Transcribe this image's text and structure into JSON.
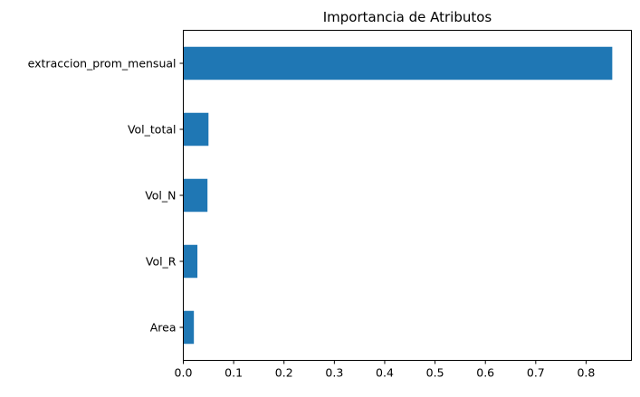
{
  "chart_data": {
    "type": "bar",
    "orientation": "horizontal",
    "title": "Importancia de Atributos",
    "xlabel": "",
    "ylabel": "",
    "categories": [
      "extraccion_prom_mensual",
      "Vol_total",
      "Vol_N",
      "Vol_R",
      "Area"
    ],
    "values": [
      0.852,
      0.05,
      0.048,
      0.028,
      0.021
    ],
    "xlim": [
      0,
      0.89
    ],
    "xticks": [
      "0.0",
      "0.1",
      "0.2",
      "0.3",
      "0.4",
      "0.5",
      "0.6",
      "0.7",
      "0.8"
    ],
    "grid": false,
    "legend": "none",
    "bar_color": "#1f77b4"
  }
}
